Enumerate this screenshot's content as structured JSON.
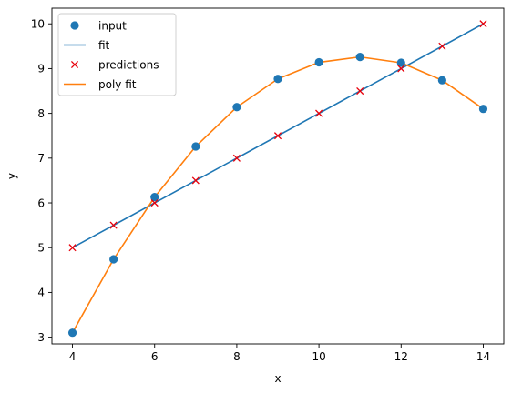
{
  "chart_data": {
    "type": "scatter",
    "title": "",
    "xlabel": "x",
    "ylabel": "y",
    "xlim": [
      3.5,
      14.5
    ],
    "ylim": [
      2.85,
      10.35
    ],
    "xticks": [
      4,
      6,
      8,
      10,
      12,
      14
    ],
    "yticks": [
      3,
      4,
      5,
      6,
      7,
      8,
      9,
      10
    ],
    "grid": false,
    "legend_position": "top-left",
    "series": [
      {
        "name": "input",
        "kind": "scatter",
        "marker": "circle",
        "color": "#1f77b4",
        "x": [
          4,
          5,
          6,
          7,
          8,
          9,
          10,
          11,
          12,
          13,
          14
        ],
        "y": [
          3.1,
          4.74,
          6.13,
          7.26,
          8.14,
          8.77,
          9.14,
          9.26,
          9.13,
          8.74,
          8.1
        ]
      },
      {
        "name": "fit",
        "kind": "line",
        "color": "#1f77b4",
        "x": [
          4,
          14
        ],
        "y": [
          5.0,
          10.0
        ]
      },
      {
        "name": "predictions",
        "kind": "scatter",
        "marker": "x",
        "color": "#e8000b",
        "x": [
          4,
          5,
          6,
          7,
          8,
          9,
          10,
          11,
          12,
          13,
          14
        ],
        "y": [
          5.0,
          5.5,
          6.0,
          6.5,
          7.0,
          7.5,
          8.0,
          8.5,
          9.0,
          9.5,
          10.0
        ]
      },
      {
        "name": "poly fit",
        "kind": "line",
        "color": "#ff7f0e",
        "x": [
          4,
          5,
          6,
          7,
          8,
          9,
          10,
          11,
          12,
          13,
          14
        ],
        "y": [
          3.1,
          4.74,
          6.13,
          7.26,
          8.14,
          8.77,
          9.14,
          9.26,
          9.13,
          8.74,
          8.1
        ]
      }
    ]
  }
}
